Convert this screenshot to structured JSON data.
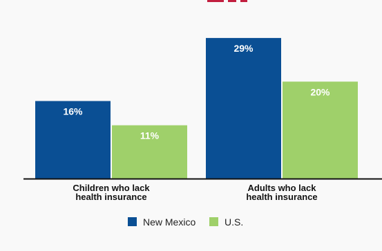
{
  "chart_data": {
    "type": "bar",
    "categories": [
      "Children who lack\nhealth insurance",
      "Adults who lack\nhealth insurance"
    ],
    "series": [
      {
        "name": "New Mexico",
        "values": [
          16,
          29
        ],
        "color": "#0a4f94"
      },
      {
        "name": "U.S.",
        "values": [
          11,
          20
        ],
        "color": "#9fd06a"
      }
    ],
    "value_suffix": "%",
    "ylim": [
      0,
      32
    ],
    "grid": false,
    "legend_position": "bottom-center",
    "background": "#f9f9f9",
    "top_accent_color": "#c21f3f"
  }
}
